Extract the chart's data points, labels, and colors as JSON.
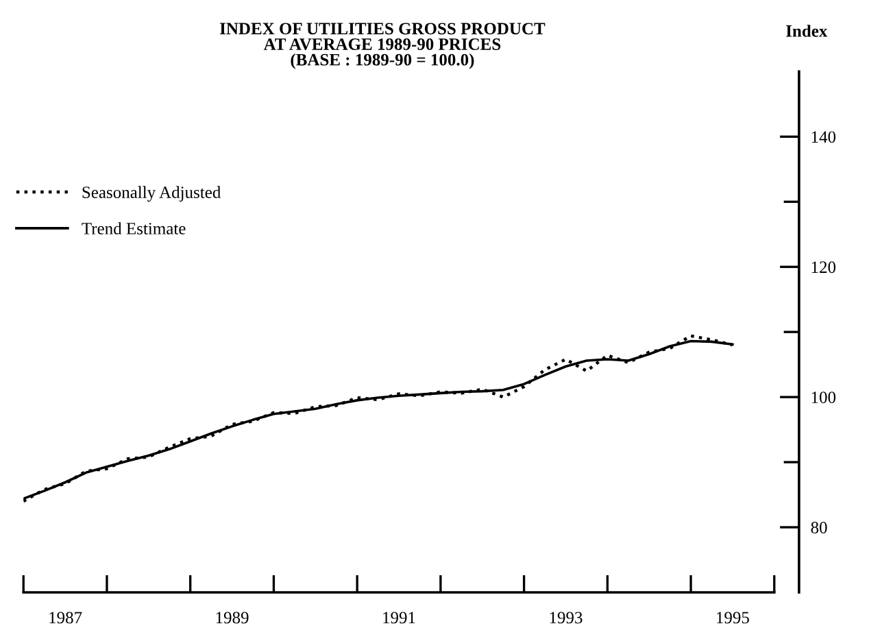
{
  "chart_data": {
    "type": "line",
    "title": "INDEX OF UTILITIES GROSS PRODUCT\nAT AVERAGE 1989-90 PRICES\n(BASE : 1989-90 = 100.0)",
    "ylabel": "Index",
    "x": [
      1987.0,
      1987.25,
      1987.5,
      1987.75,
      1988.0,
      1988.25,
      1988.5,
      1988.75,
      1989.0,
      1989.25,
      1989.5,
      1989.75,
      1990.0,
      1990.25,
      1990.5,
      1990.75,
      1991.0,
      1991.25,
      1991.5,
      1991.75,
      1992.0,
      1992.25,
      1992.5,
      1992.75,
      1993.0,
      1993.25,
      1993.5,
      1993.75,
      1994.0,
      1994.25,
      1994.5,
      1994.75,
      1995.0,
      1995.25,
      1995.5
    ],
    "series": [
      {
        "name": "Seasonally Adjusted",
        "color": "#000000",
        "line_style": "dotted",
        "values": [
          84.0,
          85.8,
          86.7,
          88.6,
          89.0,
          90.5,
          90.8,
          92.3,
          93.6,
          94.0,
          95.8,
          96.3,
          97.6,
          97.5,
          98.5,
          98.7,
          99.9,
          99.6,
          100.5,
          100.2,
          100.8,
          100.6,
          101.2,
          100.0,
          101.6,
          104.2,
          105.8,
          104.0,
          106.4,
          105.3,
          106.9,
          107.5,
          109.4,
          108.8,
          108.0
        ]
      },
      {
        "name": "Trend Estimate",
        "color": "#000000",
        "line_style": "solid",
        "values": [
          84.4,
          85.6,
          86.9,
          88.4,
          89.3,
          90.2,
          91.0,
          92.0,
          93.2,
          94.4,
          95.5,
          96.5,
          97.4,
          97.8,
          98.2,
          98.9,
          99.5,
          99.9,
          100.2,
          100.4,
          100.6,
          100.8,
          100.9,
          101.1,
          102.0,
          103.4,
          104.7,
          105.6,
          105.8,
          105.6,
          106.6,
          107.8,
          108.6,
          108.5,
          108.1
        ]
      }
    ],
    "xlim": [
      1987,
      1996
    ],
    "xticks": [
      {
        "value": 1987,
        "label": null
      },
      {
        "value": 1988,
        "label": null
      },
      {
        "value": 1989,
        "label": null
      },
      {
        "value": 1990,
        "label": null
      },
      {
        "value": 1991,
        "label": null
      },
      {
        "value": 1992,
        "label": null
      },
      {
        "value": 1993,
        "label": null
      },
      {
        "value": 1994,
        "label": null
      },
      {
        "value": 1995,
        "label": null
      },
      {
        "value": 1996,
        "label": null
      },
      {
        "value": 1987.5,
        "label": "1987"
      },
      {
        "value": 1989.5,
        "label": "1989"
      },
      {
        "value": 1991.5,
        "label": "1991"
      },
      {
        "value": 1993.5,
        "label": "1993"
      },
      {
        "value": 1995.5,
        "label": "1995"
      }
    ],
    "ylim": [
      70,
      150
    ],
    "yticks": [
      80,
      {
        "value": 90,
        "label": null
      },
      100,
      {
        "value": 110,
        "label": null
      },
      120,
      {
        "value": 130,
        "label": null
      },
      140
    ],
    "grid": false,
    "legend": "top left",
    "marker": "none"
  }
}
